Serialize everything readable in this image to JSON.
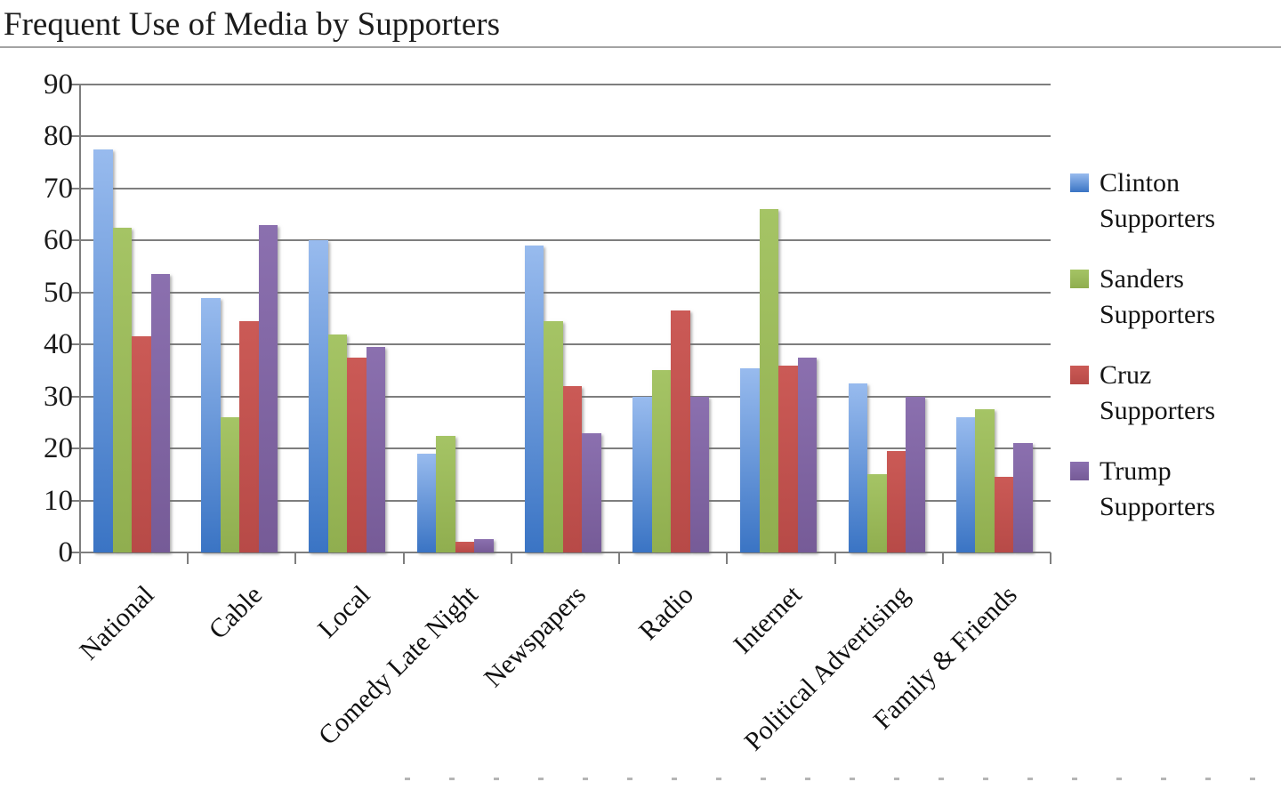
{
  "title": "Frequent Use of Media by Supporters",
  "chart_data": {
    "type": "bar",
    "title": "Frequent Use of Media by Supporters",
    "categories": [
      "National",
      "Cable",
      "Local",
      "Comedy Late Night",
      "Newspapers",
      "Radio",
      "Internet",
      "Political Advertising",
      "Family & Friends"
    ],
    "series": [
      {
        "name": "Clinton Supporters",
        "color_top": "#98bbee",
        "color_bottom": "#3a74c4",
        "values": [
          77.5,
          49,
          60,
          19,
          59,
          30,
          35.5,
          32.5,
          26
        ]
      },
      {
        "name": "Sanders Supporters",
        "color_top": "#a5c465",
        "color_bottom": "#90ae4f",
        "values": [
          62.5,
          26,
          42,
          22.5,
          44.5,
          35,
          66,
          15,
          27.5
        ]
      },
      {
        "name": "Cruz Supporters",
        "color_top": "#cb5a56",
        "color_bottom": "#b74a47",
        "values": [
          41.5,
          44.5,
          37.5,
          2,
          32,
          46.5,
          36,
          19.5,
          14.5
        ]
      },
      {
        "name": "Trump Supporters",
        "color_top": "#8b70af",
        "color_bottom": "#765b97",
        "values": [
          53.5,
          63,
          39.5,
          2.5,
          23,
          30,
          37.5,
          30,
          21
        ]
      }
    ],
    "ylim": [
      0,
      90
    ],
    "y_ticks": [
      0,
      10,
      20,
      30,
      40,
      50,
      60,
      70,
      80,
      90
    ],
    "grid": true,
    "legend_position": "right",
    "xlabel": "",
    "ylabel": ""
  }
}
